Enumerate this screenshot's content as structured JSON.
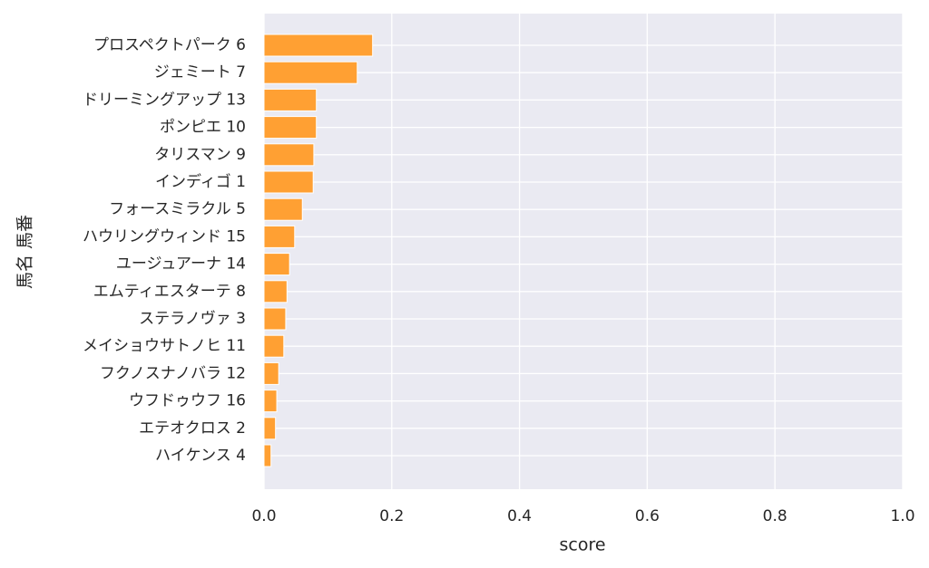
{
  "chart_data": {
    "type": "barh",
    "xlabel": "score",
    "ylabel": "馬名 馬番",
    "categories": [
      "プロスペクトパーク 6",
      "ジェミート 7",
      "ドリーミングアップ 13",
      "ポンピエ 10",
      "タリスマン 9",
      "インディゴ 1",
      "フォースミラクル 5",
      "ハウリングウィンド 15",
      "ユージュアーナ 14",
      "エムティエスターテ 8",
      "ステラノヴァ 3",
      "メイショウサトノヒ 11",
      "フクノスナノバラ 12",
      "ウフドゥウフ 16",
      "エテオクロス 2",
      "ハイケンス 4"
    ],
    "values": [
      0.17,
      0.146,
      0.082,
      0.082,
      0.078,
      0.077,
      0.06,
      0.048,
      0.04,
      0.036,
      0.034,
      0.031,
      0.023,
      0.02,
      0.018,
      0.011
    ],
    "color": "#ffa033",
    "xlim": [
      0,
      1
    ],
    "xticks": [
      {
        "value": 0,
        "label": "0.0"
      },
      {
        "value": 0.2,
        "label": "0.2"
      },
      {
        "value": 0.4,
        "label": "0.4"
      },
      {
        "value": 0.6,
        "label": "0.6"
      },
      {
        "value": 0.8,
        "label": "0.8"
      },
      {
        "value": 1,
        "label": "1.0"
      }
    ],
    "grid": true
  }
}
